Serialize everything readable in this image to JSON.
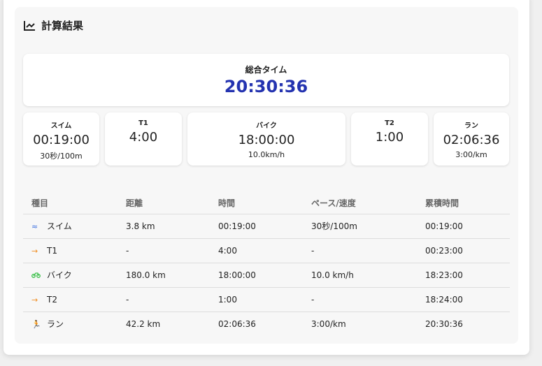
{
  "title": "計算結果",
  "title_icon": "chart-line-icon",
  "total": {
    "label": "総合タイム",
    "value": "20:30:36",
    "color": "#2433b0"
  },
  "segments": [
    {
      "label": "スイム",
      "value": "00:19:00",
      "sub": "30秒/100m"
    },
    {
      "label": "T1",
      "value": "4:00",
      "sub": ""
    },
    {
      "label": "バイク",
      "value": "18:00:00",
      "sub": "10.0km/h"
    },
    {
      "label": "T2",
      "value": "1:00",
      "sub": ""
    },
    {
      "label": "ラン",
      "value": "02:06:36",
      "sub": "3:00/km"
    }
  ],
  "table": {
    "headers": [
      "種目",
      "距離",
      "時間",
      "ペース/速度",
      "累積時間"
    ],
    "rows": [
      {
        "icon": "swim-icon",
        "icon_color": "#3b6fe0",
        "cells": [
          "スイム",
          "3.8 km",
          "00:19:00",
          "30秒/100m",
          "00:19:00"
        ]
      },
      {
        "icon": "arrow-right-icon",
        "icon_color": "#f08a1c",
        "cells": [
          "T1",
          "-",
          "4:00",
          "-",
          "00:23:00"
        ]
      },
      {
        "icon": "bike-icon",
        "icon_color": "#3cc04a",
        "cells": [
          "バイク",
          "180.0 km",
          "18:00:00",
          "10.0 km/h",
          "18:23:00"
        ]
      },
      {
        "icon": "arrow-right-icon",
        "icon_color": "#f08a1c",
        "cells": [
          "T2",
          "-",
          "1:00",
          "-",
          "18:24:00"
        ]
      },
      {
        "icon": "run-icon",
        "icon_color": "#e03a3a",
        "cells": [
          "ラン",
          "42.2 km",
          "02:06:36",
          "3:00/km",
          "20:30:36"
        ]
      }
    ]
  }
}
